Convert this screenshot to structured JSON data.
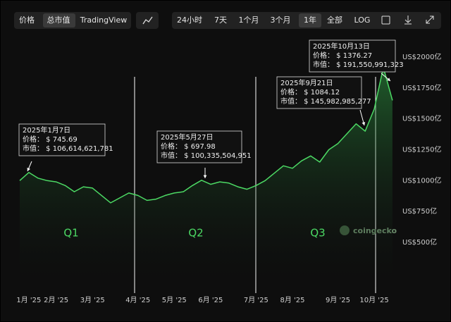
{
  "toolbar": {
    "left": [
      "价格",
      "总市值",
      "TradingView"
    ],
    "right": [
      "24小时",
      "7天",
      "1个月",
      "3个月",
      "1年",
      "全部",
      "LOG"
    ]
  },
  "chart_data": {
    "type": "line",
    "color": "#4cd964",
    "categories": [
      null,
      "1月 '25",
      null,
      null,
      "2月 '25",
      null,
      null,
      null,
      "3月 '25",
      null,
      null,
      null,
      null,
      "4月 '25",
      null,
      null,
      null,
      "5月 '25",
      null,
      null,
      null,
      "6月 '25",
      null,
      null,
      null,
      null,
      "7月 '25",
      null,
      null,
      null,
      "8月 '25",
      null,
      null,
      null,
      null,
      "9月 '25",
      null,
      null,
      null,
      "10月 '25",
      null,
      null
    ],
    "values": [
      1000,
      1066,
      1020,
      1000,
      990,
      960,
      910,
      950,
      940,
      880,
      820,
      860,
      900,
      880,
      840,
      850,
      880,
      900,
      910,
      960,
      1003,
      970,
      990,
      980,
      950,
      930,
      960,
      1000,
      1060,
      1120,
      1100,
      1160,
      1200,
      1150,
      1250,
      1300,
      1380,
      1460,
      1400,
      1580,
      1916,
      1650
    ],
    "ylim": [
      500,
      2000
    ],
    "yticks": [
      {
        "value": 500,
        "label": "US$500亿"
      },
      {
        "value": 750,
        "label": "US$750亿"
      },
      {
        "value": 1000,
        "label": "US$1000亿"
      },
      {
        "value": 1250,
        "label": "US$1250亿"
      },
      {
        "value": 1500,
        "label": "US$1500亿"
      },
      {
        "value": 1750,
        "label": "US$1750亿"
      },
      {
        "value": 2000,
        "label": "US$2000亿"
      }
    ],
    "quarters": [
      "Q1",
      "Q2",
      "Q3"
    ],
    "annotations": [
      [
        "2025年1月7日",
        "价格： $ 745.69",
        "市值： $ 106,614,621,781"
      ],
      [
        "2025年5月27日",
        "价格： $ 697.98",
        "市值： $ 100,335,504,951"
      ],
      [
        "2025年9月21日",
        "价格： $ 1084.12",
        "市值： $ 145,982,985,277"
      ],
      [
        "2025年10月13日",
        "价格： $ 1376.27",
        "市值： $ 191,550,991,323"
      ]
    ],
    "watermark": "coingecko"
  }
}
